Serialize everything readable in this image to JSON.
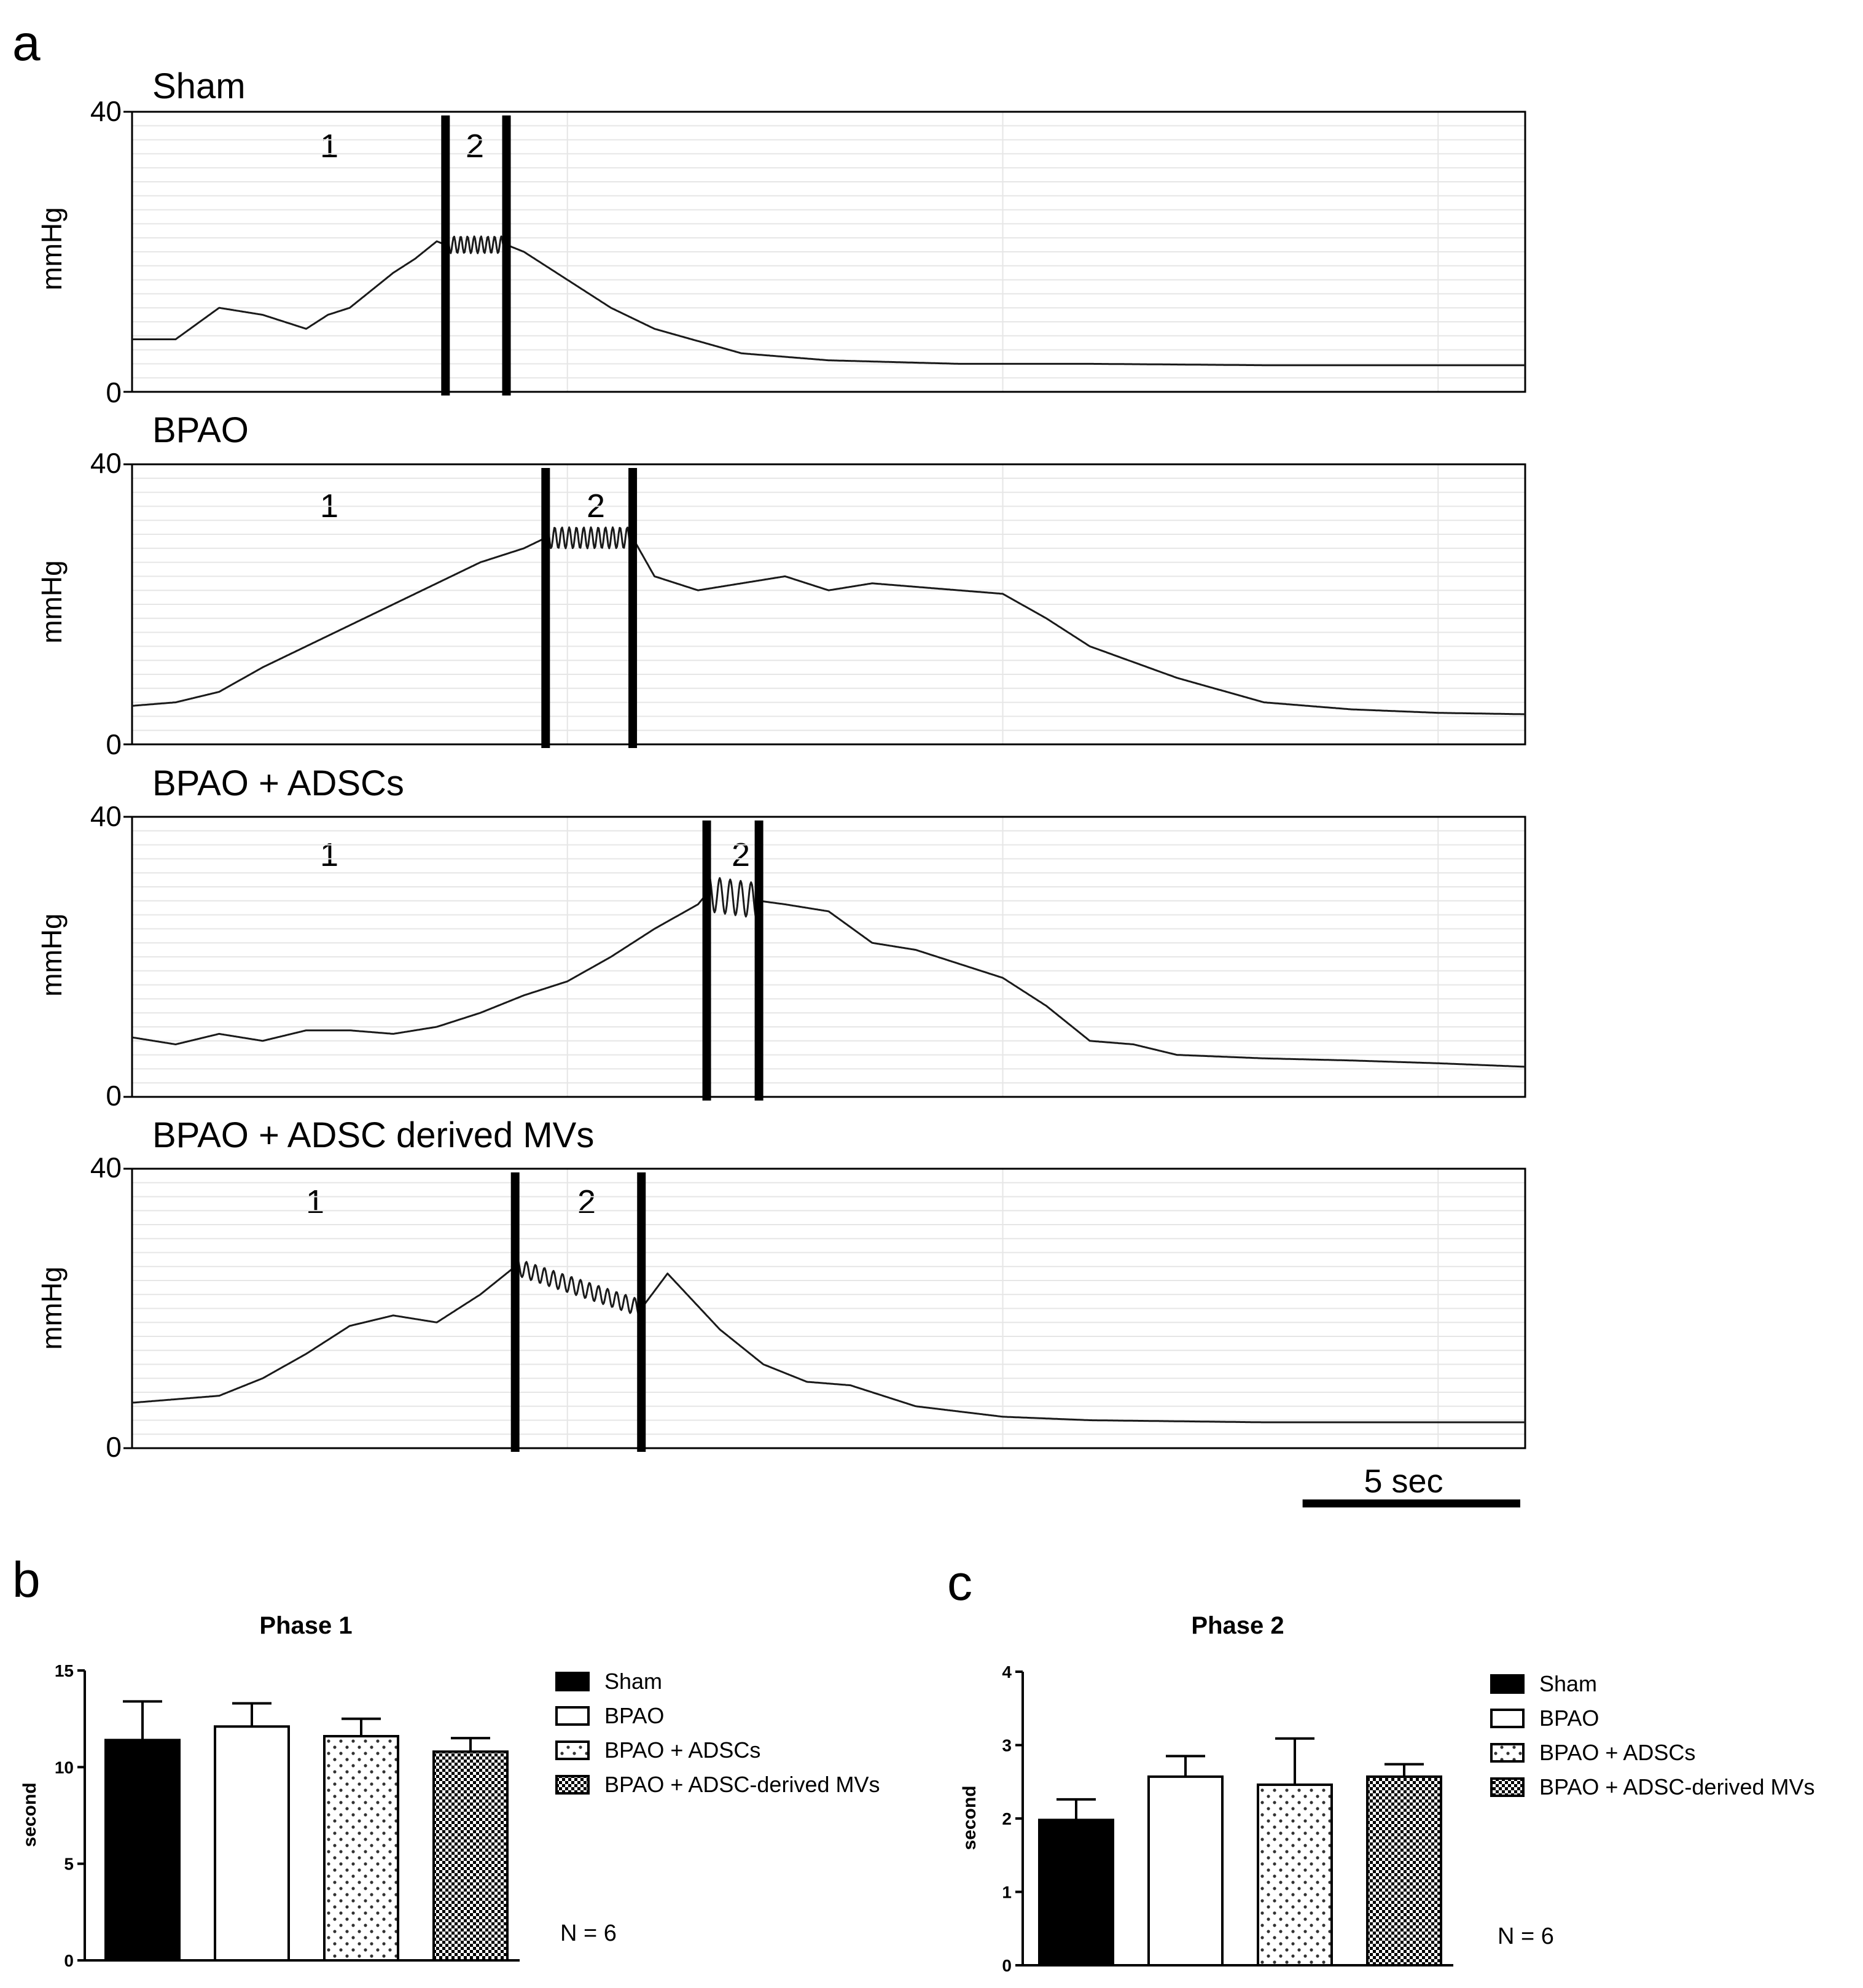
{
  "panel_a": {
    "letter": "a",
    "ylabel": "mmHg",
    "y_ticks": [
      "0",
      "40"
    ],
    "ylim": [
      0,
      40
    ],
    "duration_sec": 32,
    "scale_bar": {
      "label": "5 sec",
      "seconds": 5
    },
    "traces": [
      {
        "title": "Sham",
        "phase1_label": "1",
        "phase2_label": "2",
        "phase_bounds_sec": [
          7.2,
          8.6
        ],
        "trace": {
          "t": [
            0,
            1,
            2,
            3,
            4,
            4.5,
            5,
            6,
            6.5,
            7,
            7.2,
            8.6,
            9,
            10,
            11,
            12,
            14,
            16,
            19,
            22,
            26,
            32
          ],
          "mmHg": [
            7.5,
            7.5,
            12,
            11,
            9,
            11,
            12,
            17,
            19,
            21.5,
            21,
            21,
            20,
            16,
            12,
            9,
            5.5,
            4.5,
            4,
            4,
            3.8,
            3.8
          ]
        },
        "oscillation": {
          "start_sec": 7.2,
          "end_sec": 8.6,
          "cycles": 9,
          "amplitude": 1.2
        }
      },
      {
        "title": "BPAO",
        "phase1_label": "1",
        "phase2_label": "2",
        "phase_bounds_sec": [
          9.5,
          11.5
        ],
        "trace": {
          "t": [
            0,
            1,
            2,
            3,
            4,
            5,
            6,
            7,
            8,
            9,
            9.5,
            11.5,
            12,
            13,
            14,
            15,
            16,
            17,
            18,
            19,
            20,
            21,
            22,
            24,
            26,
            28,
            30,
            32
          ],
          "mmHg": [
            5.5,
            6,
            7.5,
            11,
            14,
            17,
            20,
            23,
            26,
            28,
            29.5,
            29.5,
            24,
            22,
            23,
            24,
            22,
            23,
            22.5,
            22,
            21.5,
            18,
            14,
            9.5,
            6,
            5,
            4.5,
            4.3
          ]
        },
        "oscillation": {
          "start_sec": 9.5,
          "end_sec": 11.5,
          "cycles": 12,
          "amplitude": 1.5
        }
      },
      {
        "title": "BPAO  + ADSCs",
        "phase1_label": "1",
        "phase2_label": "2",
        "phase_bounds_sec": [
          13.2,
          14.4
        ],
        "trace": {
          "t": [
            0,
            1,
            2,
            3,
            4,
            5,
            6,
            7,
            8,
            9,
            10,
            11,
            12,
            13,
            13.2,
            14.4,
            15,
            16,
            17,
            18,
            19,
            20,
            21,
            22,
            23,
            24,
            26,
            28,
            30,
            32
          ],
          "mmHg": [
            8.5,
            7.5,
            9,
            8,
            9.5,
            9.5,
            9,
            10,
            12,
            14.5,
            16.5,
            20,
            24,
            27.5,
            29,
            28,
            27.5,
            26.5,
            22,
            21,
            19,
            17,
            13,
            8,
            7.5,
            6,
            5.5,
            5.2,
            4.8,
            4.3
          ]
        },
        "oscillation": {
          "start_sec": 13.2,
          "end_sec": 14.4,
          "cycles": 5,
          "amplitude": 2.5
        }
      },
      {
        "title": "BPAO  + ADSC  derived MVs",
        "phase1_label": "1",
        "phase2_label": "2",
        "phase_bounds_sec": [
          8.8,
          11.7
        ],
        "trace": {
          "t": [
            0,
            1,
            2,
            3,
            4,
            5,
            6,
            7,
            8,
            8.8,
            11.7,
            12.3,
            13.5,
            14.5,
            15.5,
            16.5,
            18,
            20,
            22,
            26,
            32
          ],
          "mmHg": [
            6.5,
            7,
            7.5,
            10,
            13.5,
            17.5,
            19,
            18,
            22,
            26,
            20,
            25,
            17,
            12,
            9.5,
            9,
            6,
            4.5,
            4,
            3.7,
            3.7
          ]
        },
        "oscillation": {
          "start_sec": 8.8,
          "end_sec": 11.7,
          "cycles": 14,
          "amplitude": 1.2
        }
      }
    ]
  },
  "legend_labels": [
    "Sham",
    "BPAO",
    "BPAO + ADSCs",
    "BPAO + ADSC-derived MVs"
  ],
  "sample_size": "N = 6",
  "chart_data": [
    {
      "type": "bar",
      "panel": "b",
      "title": "Phase 1",
      "ylabel": "second",
      "xlabel": "",
      "categories": [
        "Sham",
        "BPAO",
        "BPAO + ADSCs",
        "BPAO + ADSC-derived MVs"
      ],
      "values": [
        11.4,
        12.1,
        11.6,
        10.8
      ],
      "errors": [
        2.0,
        1.2,
        0.9,
        0.7
      ],
      "ylim": [
        0,
        15
      ],
      "y_ticks": [
        "0",
        "5",
        "10",
        "15"
      ],
      "legend_position": "right"
    },
    {
      "type": "bar",
      "panel": "c",
      "title": "Phase 2",
      "ylabel": "second",
      "xlabel": "",
      "categories": [
        "Sham",
        "BPAO",
        "BPAO + ADSCs",
        "BPAO + ADSC-derived MVs"
      ],
      "values": [
        1.98,
        2.57,
        2.46,
        2.57
      ],
      "errors": [
        0.28,
        0.28,
        0.63,
        0.17
      ],
      "ylim": [
        0,
        4
      ],
      "y_ticks": [
        "0",
        "1",
        "2",
        "3",
        "4"
      ],
      "legend_position": "right"
    }
  ],
  "colors": {
    "trace": "#1a1a1a",
    "grid": "#e6e6e6",
    "sham_fill": "#000000",
    "bpao_fill": "#ffffff"
  }
}
